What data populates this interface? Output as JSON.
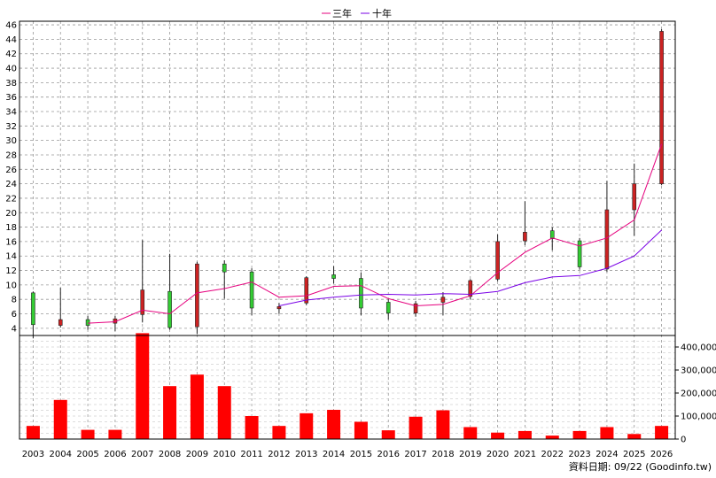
{
  "chart_data": {
    "type": "candlestick+line+bar",
    "legend": [
      {
        "name": "三年",
        "color": "#e6007e"
      },
      {
        "name": "十年",
        "color": "#7a00e6"
      }
    ],
    "legend_placement": "top-center",
    "grid": true,
    "years": [
      "2003",
      "2004",
      "2005",
      "2006",
      "2007",
      "2008",
      "2009",
      "2010",
      "2011",
      "2012",
      "2013",
      "2014",
      "2015",
      "2016",
      "2017",
      "2018",
      "2019",
      "2020",
      "2021",
      "2022",
      "2023",
      "2024",
      "2025",
      "2026"
    ],
    "price_axis": {
      "ylim": [
        3,
        46.5
      ],
      "ticks": [
        4,
        6,
        8,
        10,
        12,
        14,
        16,
        18,
        20,
        22,
        24,
        26,
        28,
        30,
        32,
        34,
        36,
        38,
        40,
        42,
        44,
        46
      ]
    },
    "candles": [
      {
        "year": "2003",
        "open": 4.5,
        "close": 8.9,
        "high": 9.1,
        "low": 2.6
      },
      {
        "year": "2004",
        "open": 5.2,
        "close": 4.4,
        "high": 9.6,
        "low": 4.1
      },
      {
        "year": "2005",
        "open": 4.4,
        "close": 5.2,
        "high": 5.7,
        "low": 3.8
      },
      {
        "year": "2006",
        "open": 5.3,
        "close": 4.7,
        "high": 5.7,
        "low": 3.6
      },
      {
        "year": "2007",
        "open": 9.3,
        "close": 5.9,
        "high": 16.2,
        "low": 4.8
      },
      {
        "year": "2008",
        "open": 4.1,
        "close": 9.1,
        "high": 14.3,
        "low": 3.8
      },
      {
        "year": "2009",
        "open": 12.9,
        "close": 4.2,
        "high": 13.2,
        "low": 3.2
      },
      {
        "year": "2010",
        "open": 11.8,
        "close": 12.9,
        "high": 13.4,
        "low": 8.1
      },
      {
        "year": "2011",
        "open": 6.8,
        "close": 11.8,
        "high": 12.3,
        "low": 5.8
      },
      {
        "year": "2012",
        "open": 7.0,
        "close": 6.7,
        "high": 7.5,
        "low": 6.0
      },
      {
        "year": "2013",
        "open": 11.0,
        "close": 7.5,
        "high": 11.2,
        "low": 7.2
      },
      {
        "year": "2014",
        "open": 10.9,
        "close": 11.4,
        "high": 12.6,
        "low": 10.2
      },
      {
        "year": "2015",
        "open": 6.8,
        "close": 10.9,
        "high": 11.7,
        "low": 5.8
      },
      {
        "year": "2016",
        "open": 6.1,
        "close": 7.6,
        "high": 8.0,
        "low": 5.2
      },
      {
        "year": "2017",
        "open": 7.4,
        "close": 6.1,
        "high": 7.8,
        "low": 5.6
      },
      {
        "year": "2018",
        "open": 8.3,
        "close": 7.6,
        "high": 9.0,
        "low": 5.8
      },
      {
        "year": "2019",
        "open": 10.6,
        "close": 8.4,
        "high": 10.8,
        "low": 8.0
      },
      {
        "year": "2020",
        "open": 16.0,
        "close": 10.8,
        "high": 17.0,
        "low": 10.5
      },
      {
        "year": "2021",
        "open": 17.3,
        "close": 16.1,
        "high": 21.6,
        "low": 15.5
      },
      {
        "year": "2022",
        "open": 16.4,
        "close": 17.5,
        "high": 18.0,
        "low": 14.8
      },
      {
        "year": "2023",
        "open": 12.5,
        "close": 16.1,
        "high": 16.5,
        "low": 12.1
      },
      {
        "year": "2024",
        "open": 20.4,
        "close": 12.2,
        "high": 24.4,
        "low": 11.8
      },
      {
        "year": "2025",
        "open": 24.0,
        "close": 20.4,
        "high": 26.8,
        "low": 16.8
      },
      {
        "year": "2026",
        "open": 45.1,
        "close": 24.0,
        "high": 45.4,
        "low": 23.8
      }
    ],
    "candle_colors": {
      "up": "#33cc33",
      "down": "#cc2222"
    },
    "ma_series": [
      {
        "name": "三年",
        "color": "#e6007e",
        "start_year": "2005",
        "values": [
          4.7,
          4.9,
          6.5,
          6.0,
          8.9,
          9.5,
          10.4,
          8.3,
          8.5,
          9.8,
          9.9,
          8.1,
          7.1,
          7.3,
          8.5,
          11.7,
          14.5,
          16.5,
          15.4,
          16.5,
          19.0,
          29.5
        ]
      },
      {
        "name": "十年",
        "color": "#7a00e6",
        "start_year": "2012",
        "values": [
          7.1,
          7.9,
          8.3,
          8.6,
          8.7,
          8.6,
          8.8,
          8.7,
          9.1,
          10.3,
          11.1,
          11.3,
          12.3,
          14.0,
          17.6
        ]
      }
    ],
    "volume_axis": {
      "ylim": [
        0,
        450000
      ],
      "ticks": [
        0,
        100000,
        200000,
        300000,
        400000
      ],
      "tick_labels": [
        "0",
        "100,000",
        "200,000",
        "300,000",
        "400,000"
      ]
    },
    "volumes": [
      57000,
      170000,
      40000,
      40000,
      460000,
      230000,
      280000,
      230000,
      100000,
      57000,
      112000,
      127000,
      75000,
      38000,
      97000,
      125000,
      52000,
      28000,
      35000,
      15000,
      35000,
      52000,
      22000,
      57000
    ],
    "volume_color": "#ff0000",
    "source_text": "資料日期: 09/22  (Goodinfo.tw)"
  }
}
